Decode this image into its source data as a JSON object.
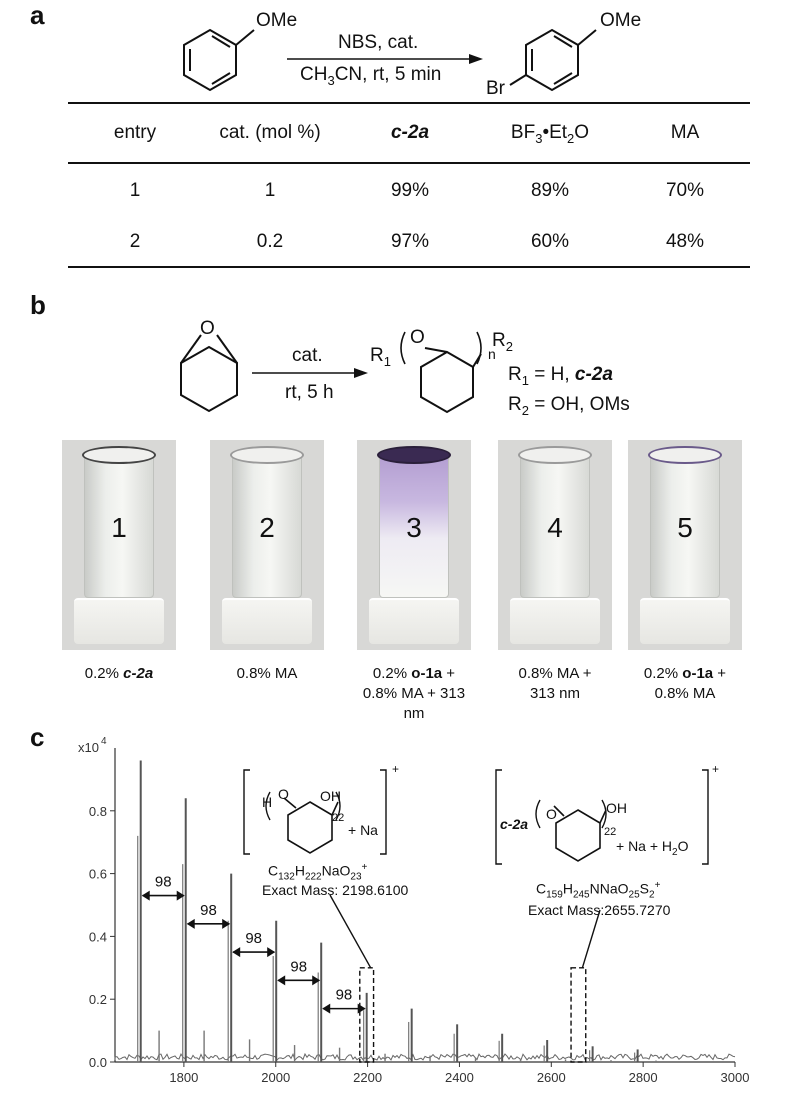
{
  "panels": {
    "a": "a",
    "b": "b",
    "c": "c"
  },
  "reaction_a": {
    "reagent_ome_left": "OMe",
    "reagent_ome_right": "OMe",
    "reagent_br": "Br",
    "conditions_top": "NBS, cat.",
    "conditions_bottom": "CH3CN, rt, 5 min"
  },
  "table": {
    "headers": [
      "entry",
      "cat. (mol %)",
      "c-2a",
      "BF3•Et2O",
      "MA"
    ],
    "rows": [
      [
        "1",
        "1",
        "99%",
        "89%",
        "70%"
      ],
      [
        "2",
        "0.2",
        "97%",
        "60%",
        "48%"
      ]
    ]
  },
  "reaction_b": {
    "epoxide_o": "O",
    "conditions_top": "cat.",
    "conditions_bottom": "rt, 5 h",
    "product_r1": "R1",
    "product_o": "O",
    "product_n": "n",
    "product_r2": "R2",
    "def_r1": "R1 = H, c-2a",
    "def_r2": "R2 = OH, OMs"
  },
  "vials": [
    {
      "number": "1",
      "label_lines": [
        "0.2% c-2a"
      ],
      "tint": "#ffffff",
      "rim": "#444444"
    },
    {
      "number": "2",
      "label_lines": [
        "0.8% MA"
      ],
      "tint": "#ffffff",
      "rim": "#9a9a9a"
    },
    {
      "number": "3",
      "label_lines": [
        "0.2% o-1a +",
        "0.8% MA + 313",
        "nm"
      ],
      "tint": "#b9a3d6",
      "rim": "#2a1f3a"
    },
    {
      "number": "4",
      "label_lines": [
        "0.8% MA +",
        "313 nm"
      ],
      "tint": "#ffffff",
      "rim": "#9a9a9a"
    },
    {
      "number": "5",
      "label_lines": [
        "0.2% o-1a +",
        "0.8% MA"
      ],
      "tint": "#eeeaf4",
      "rim": "#6a5a8a"
    }
  ],
  "chart_data": {
    "type": "bar",
    "y_multiplier_label": "x10",
    "y_multiplier_exp": "4",
    "xlim": [
      1650,
      3000
    ],
    "ylim": [
      0,
      1.0
    ],
    "x_ticks": [
      1800,
      2000,
      2200,
      2400,
      2600,
      2800,
      3000
    ],
    "y_ticks": [
      0.0,
      0.2,
      0.4,
      0.6,
      0.8
    ],
    "y_tick_labels": [
      "0.0",
      "0.2",
      "0.4",
      "0.6",
      "0.8"
    ],
    "peaks": [
      {
        "x": 1706,
        "y": 0.96
      },
      {
        "x": 1804,
        "y": 0.84
      },
      {
        "x": 1903,
        "y": 0.6
      },
      {
        "x": 2001,
        "y": 0.45
      },
      {
        "x": 2099,
        "y": 0.38
      },
      {
        "x": 2198,
        "y": 0.22
      },
      {
        "x": 2296,
        "y": 0.17
      },
      {
        "x": 2395,
        "y": 0.12
      },
      {
        "x": 2493,
        "y": 0.09
      },
      {
        "x": 2591,
        "y": 0.07
      },
      {
        "x": 2690,
        "y": 0.05
      },
      {
        "x": 2788,
        "y": 0.04
      }
    ],
    "spacing_arrows": [
      {
        "from": 1706,
        "to": 1804,
        "label": "98"
      },
      {
        "from": 1804,
        "to": 1903,
        "label": "98"
      },
      {
        "from": 1903,
        "to": 2001,
        "label": "98"
      },
      {
        "from": 2001,
        "to": 2099,
        "label": "98"
      },
      {
        "from": 2099,
        "to": 2198,
        "label": "98"
      }
    ],
    "annotations": [
      {
        "h_label": "H",
        "o_label": "O",
        "oh_label": "OH",
        "sub": "22",
        "adduct": "+ Na",
        "formula": "C132H222NaO23+",
        "mass": "Exact Mass: 2198.6100",
        "charge": "+",
        "box_x": [
          2183,
          2213
        ]
      },
      {
        "h_label": "c-2a",
        "o_label": "O",
        "oh_label": "OH",
        "sub": "22",
        "adduct": "+ Na + H2O",
        "formula": "C159H245NNaO25S2+",
        "mass": "Exact Mass:2655.7270",
        "charge": "+",
        "box_x": [
          2643,
          2675
        ]
      }
    ]
  }
}
